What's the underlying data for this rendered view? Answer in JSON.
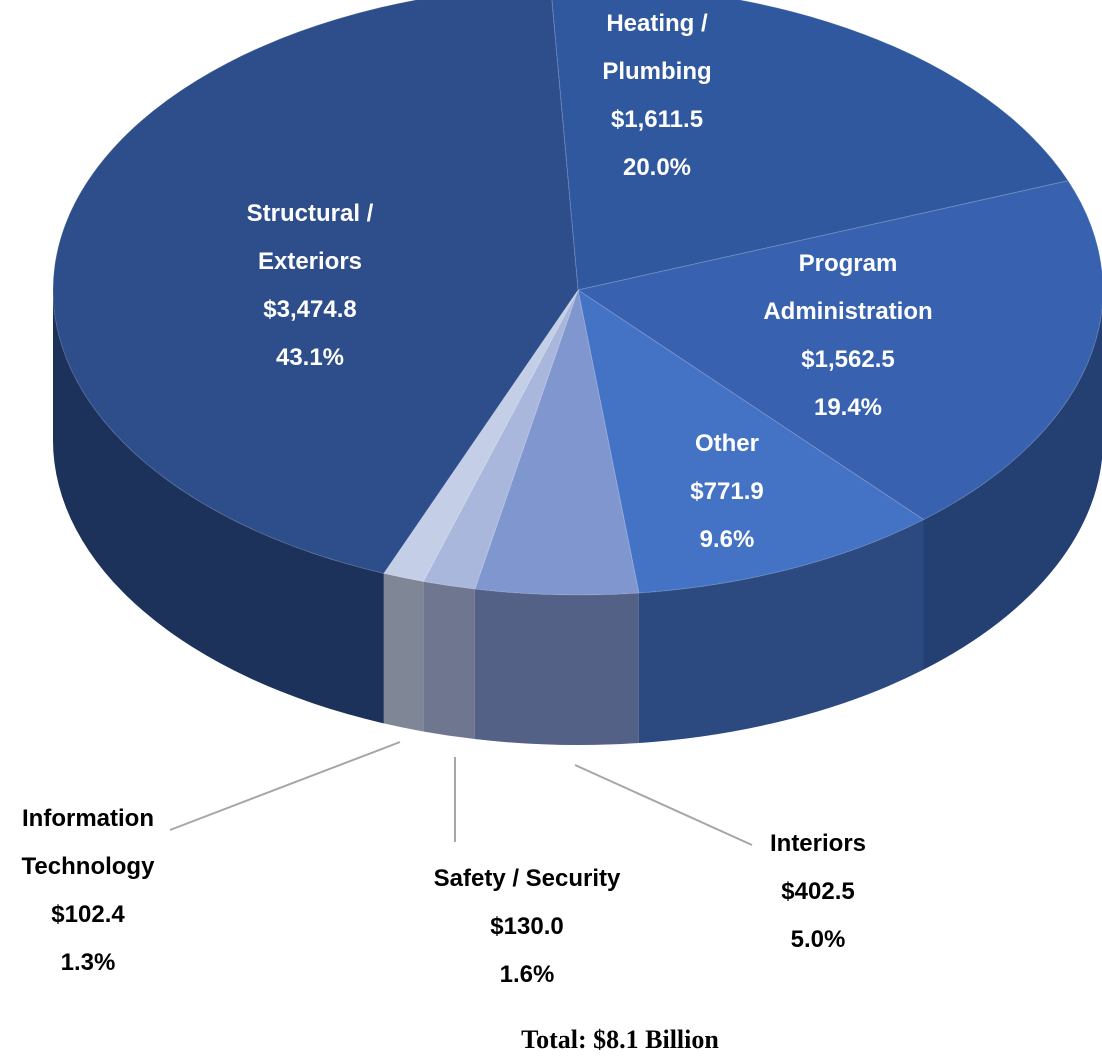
{
  "chart_data": {
    "type": "pie3d",
    "categories": [
      "Heating / Plumbing",
      "Program Administration",
      "Other",
      "Interiors",
      "Safety / Security",
      "Information Technology",
      "Structural / Exteriors"
    ],
    "values": [
      1611.5,
      1562.5,
      771.9,
      402.5,
      130.0,
      102.4,
      3474.8
    ],
    "value_labels": [
      "$1,611.5",
      "$1,562.5",
      "$771.9",
      "$402.5",
      "$130.0",
      "$102.4",
      "$3,474.8"
    ],
    "percent_labels": [
      "20.0%",
      "19.4%",
      "9.6%",
      "5.0%",
      "1.6%",
      "1.3%",
      "43.1%"
    ],
    "colors": [
      "#30589f",
      "#3862b0",
      "#4472c4",
      "#8096cf",
      "#a9b7dc",
      "#c4cee7",
      "#2d4e8b"
    ],
    "caption": "Total: $8.1 Billion"
  }
}
